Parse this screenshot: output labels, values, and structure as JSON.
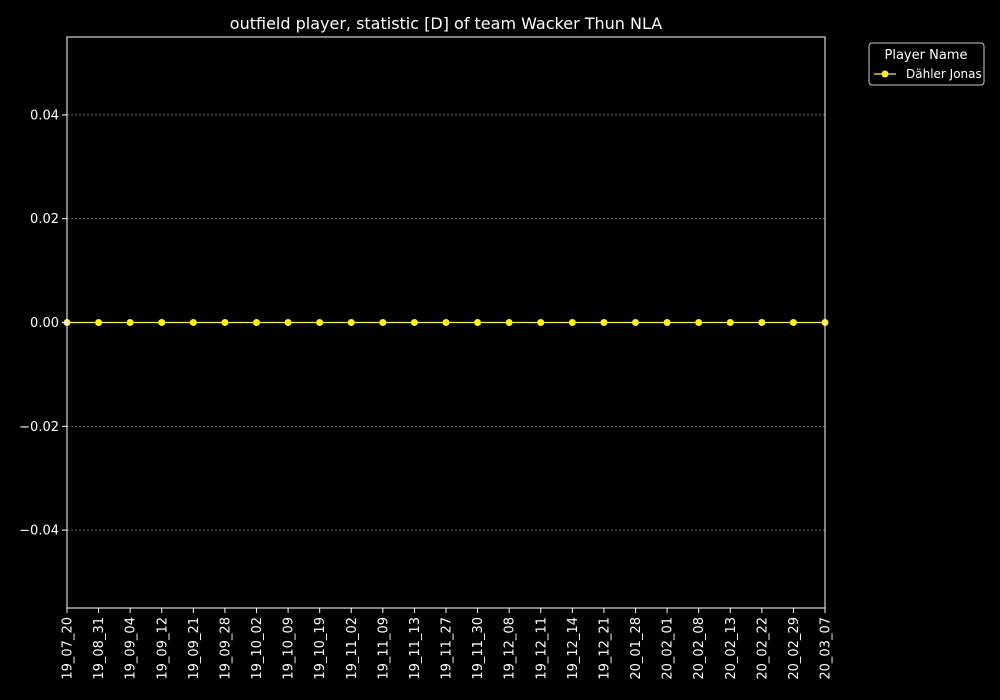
{
  "chart_data": {
    "type": "line",
    "title": "outfield player, statistic [D] of team Wacker Thun NLA",
    "xlabel": "",
    "ylabel": "",
    "categories": [
      "19_07_20",
      "19_08_31",
      "19_09_04",
      "19_09_12",
      "19_09_21",
      "19_09_28",
      "19_10_02",
      "19_10_09",
      "19_10_19",
      "19_11_02",
      "19_11_09",
      "19_11_13",
      "19_11_27",
      "19_11_30",
      "19_12_08",
      "19_12_11",
      "19_12_14",
      "19_12_21",
      "20_01_28",
      "20_02_01",
      "20_02_08",
      "20_02_13",
      "20_02_22",
      "20_02_29",
      "20_03_07"
    ],
    "series": [
      {
        "name": "Dähler Jonas",
        "color": "#ffeb3b",
        "values": [
          0,
          0,
          0,
          0,
          0,
          0,
          0,
          0,
          0,
          0,
          0,
          0,
          0,
          0,
          0,
          0,
          0,
          0,
          0,
          0,
          0,
          0,
          0,
          0,
          0
        ]
      }
    ],
    "ylim": [
      -0.055,
      0.055
    ],
    "yticks": [
      -0.04,
      -0.02,
      0.0,
      0.02,
      0.04
    ],
    "ytick_labels": [
      "−0.04",
      "−0.02",
      "0.00",
      "0.02",
      "0.04"
    ],
    "grid": "horizontal-dotted",
    "legend": {
      "title": "Player Name",
      "placement": "outside-top-right"
    },
    "colors": {
      "background": "#000000",
      "axes": "#ffffff",
      "grid": "#8c8c8c"
    }
  }
}
